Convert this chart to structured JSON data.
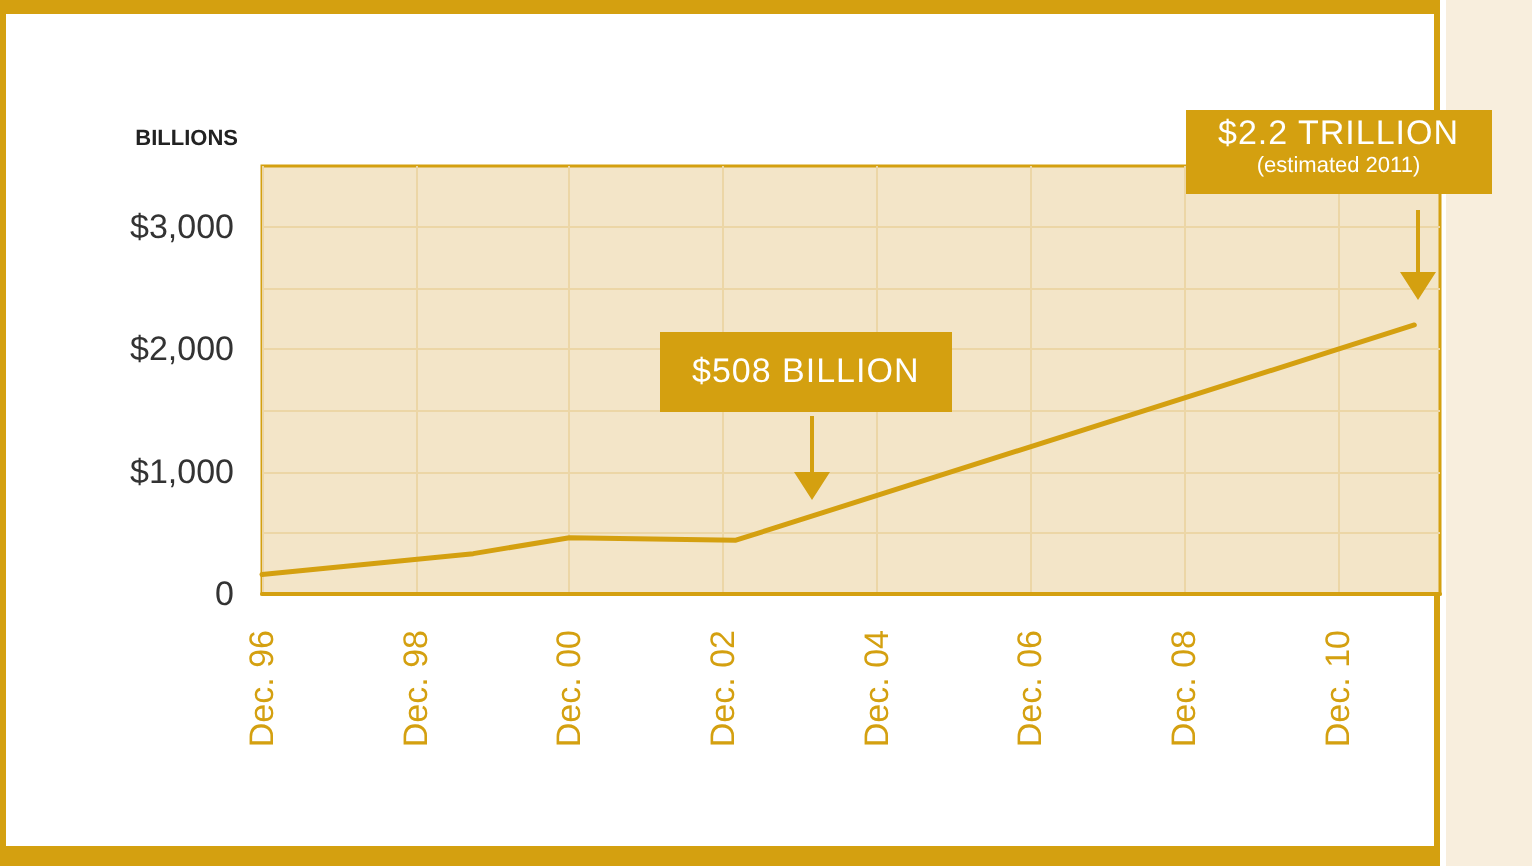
{
  "chart_data": {
    "type": "line",
    "ylabel": "BILLIONS",
    "x": [
      "1996-12",
      "1999-09",
      "2000-12",
      "2003-02",
      "2011-12"
    ],
    "series": [
      {
        "color": "#d4a010",
        "values": [
          160,
          330,
          460,
          440,
          2200
        ]
      }
    ],
    "xlim": [
      "1996-12",
      "2012-04"
    ],
    "xticks": [
      {
        "value": "1996-12",
        "label": "Dec. 96"
      },
      {
        "value": "1998-12",
        "label": "Dec. 98"
      },
      {
        "value": "2000-12",
        "label": "Dec. 00"
      },
      {
        "value": "2002-12",
        "label": "Dec. 02"
      },
      {
        "value": "2004-12",
        "label": "Dec. 04"
      },
      {
        "value": "2006-12",
        "label": "Dec. 06"
      },
      {
        "value": "2008-12",
        "label": "Dec. 08"
      },
      {
        "value": "2010-12",
        "label": "Dec. 10"
      }
    ],
    "ylim": [
      0,
      3500
    ],
    "yticks": [
      {
        "value": 0,
        "label": "0"
      },
      {
        "value": 500,
        "label": null
      },
      {
        "value": 1000,
        "label": "$1,000"
      },
      {
        "value": 1500,
        "label": null
      },
      {
        "value": 2000,
        "label": "$2,000"
      },
      {
        "value": 2500,
        "label": null
      },
      {
        "value": 3000,
        "label": "$3,000"
      }
    ],
    "annotations": [
      "$508 BILLION",
      "$2.2 TRILLION",
      "(estimated 2011)"
    ],
    "grid": true,
    "marker": "none",
    "line_style": "solid"
  }
}
